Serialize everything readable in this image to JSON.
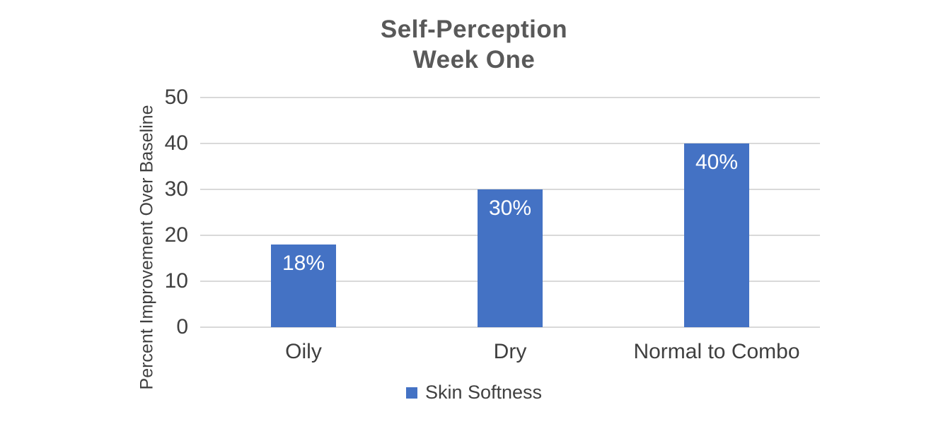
{
  "chart_data": {
    "type": "bar",
    "title_lines": [
      "Self-Perception",
      "Week One"
    ],
    "title": "Self-Perception Week One",
    "categories": [
      "Oily",
      "Dry",
      "Normal to Combo"
    ],
    "series": [
      {
        "name": "Skin Softness",
        "values": [
          18,
          30,
          40
        ],
        "data_labels": [
          "18%",
          "30%",
          "40%"
        ]
      }
    ],
    "xlabel": "",
    "ylabel": "Percent Improvement Over Baseline",
    "ylim": [
      0,
      50
    ],
    "yticks": [
      0,
      10,
      20,
      30,
      40,
      50
    ],
    "grid": true,
    "legend_position": "bottom",
    "colors": {
      "bar": "#4472C4",
      "gridline": "#D9D9D9",
      "title": "#595959",
      "axis_text": "#404040",
      "category_text": "#3F3F3F",
      "data_label": "#FFFFFF",
      "background": "#FFFFFF"
    }
  }
}
